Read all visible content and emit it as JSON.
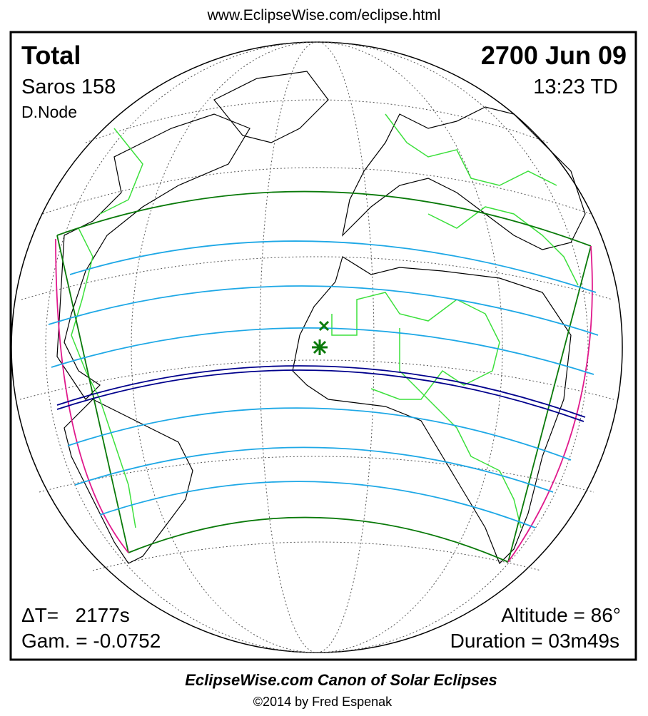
{
  "header": {
    "url": "www.EclipseWise.com/eclipse.html"
  },
  "eclipse": {
    "type": "Total",
    "date": "2700 Jun 09",
    "saros": "Saros 158",
    "time": "13:23 TD",
    "node": "D.Node"
  },
  "stats": {
    "delta_t": "ΔT=   2177s",
    "gamma": "Gam. = -0.0752",
    "altitude": "Altitude = 86°",
    "duration": "Duration = 03m49s"
  },
  "footer": {
    "title": "EclipseWise.com Canon of Solar Eclipses",
    "copyright": "©2014 by Fred Espenak"
  }
}
